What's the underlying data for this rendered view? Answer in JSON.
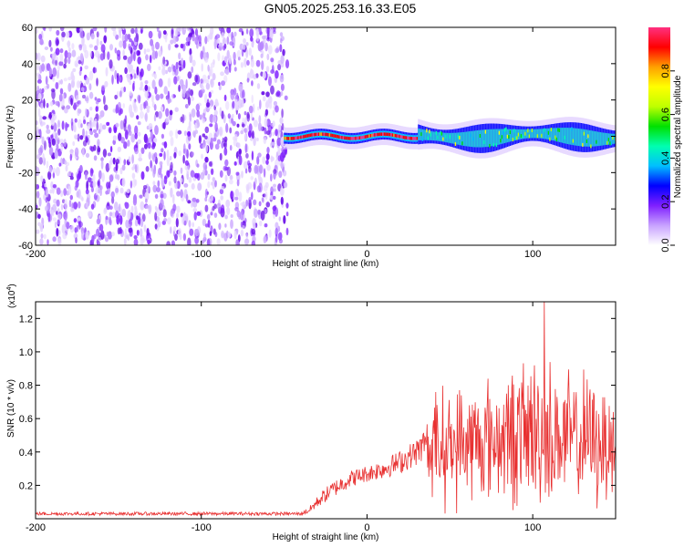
{
  "title": "GN05.2025.253.16.33.E05",
  "chart_data": [
    {
      "type": "heatmap",
      "xlabel": "Height of straight line (km)",
      "ylabel": "Frequency (Hz)",
      "xlim": [
        -200,
        150
      ],
      "ylim": [
        -60,
        60
      ],
      "xticks": [
        -200,
        -100,
        0,
        100
      ],
      "xtick_labels": [
        "-200",
        "-100",
        "0",
        "100"
      ],
      "yticks": [
        -60,
        -40,
        -20,
        0,
        20,
        40,
        60
      ],
      "ytick_labels": [
        "-60",
        "-40",
        "-20",
        "0",
        "20",
        "40",
        "60"
      ],
      "noise_region_x": [
        -200,
        -48
      ],
      "signal_band_center_hz": 0,
      "signal_band_halfwidth_hz": [
        3,
        6
      ],
      "colorbar": {
        "label": "Normalized spectral amplitude",
        "range": [
          0,
          1
        ],
        "ticks": [
          0.0,
          0.2,
          0.4,
          0.6,
          0.8
        ],
        "tick_labels": [
          "0.0",
          "0.2",
          "0.4",
          "0.6",
          "0.8"
        ],
        "colors": [
          "#ffffff",
          "#c8a2ff",
          "#7f1fff",
          "#0000ff",
          "#00bfff",
          "#00ffb0",
          "#00e000",
          "#bfff00",
          "#ffff00",
          "#ffa000",
          "#ff0000",
          "#ff3080"
        ]
      }
    },
    {
      "type": "line",
      "xlabel": "Height of straight line (km)",
      "ylabel": "SNR (10 * v/v)",
      "y_multiplier": "(x10",
      "y_multiplier_exp": "4",
      "y_multiplier_close": ")",
      "xlim": [
        -200,
        150
      ],
      "ylim": [
        0,
        1.3
      ],
      "xticks": [
        -200,
        -100,
        0,
        100
      ],
      "xtick_labels": [
        "-200",
        "-100",
        "0",
        "100"
      ],
      "yticks": [
        0.2,
        0.4,
        0.6,
        0.8,
        1.0,
        1.2
      ],
      "ytick_labels": [
        "0.2",
        "0.4",
        "0.6",
        "0.8",
        "1.0",
        "1.2"
      ],
      "color": "#e83030",
      "trend": {
        "x": [
          -200,
          -40,
          -35,
          -28,
          -20,
          -10,
          0,
          10,
          20,
          30,
          35,
          40,
          60,
          80,
          100,
          120,
          150
        ],
        "mean": [
          0.03,
          0.03,
          0.05,
          0.12,
          0.18,
          0.24,
          0.27,
          0.3,
          0.34,
          0.4,
          0.45,
          0.42,
          0.45,
          0.48,
          0.52,
          0.48,
          0.45
        ],
        "amplitude": [
          0.01,
          0.01,
          0.02,
          0.04,
          0.05,
          0.05,
          0.05,
          0.06,
          0.07,
          0.08,
          0.1,
          0.3,
          0.32,
          0.33,
          0.42,
          0.35,
          0.33
        ]
      },
      "peak": {
        "x": 107,
        "y": 1.3
      }
    }
  ]
}
